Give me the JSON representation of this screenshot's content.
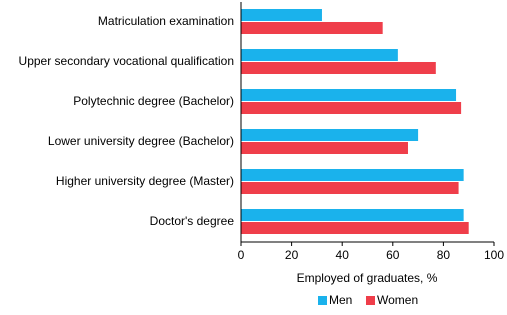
{
  "chart_data": {
    "type": "bar",
    "categories": [
      "Matriculation examination",
      "Upper secondary vocational qualification",
      "Polytechnic degree (Bachelor)",
      "Lower university degree (Bachelor)",
      "Higher university degree (Master)",
      "Doctor's degree"
    ],
    "series": [
      {
        "name": "Men",
        "color": "#1ab2ec",
        "values": [
          32,
          62,
          85,
          70,
          88,
          88
        ]
      },
      {
        "name": "Women",
        "color": "#ef3e4a",
        "values": [
          56,
          77,
          87,
          66,
          86,
          90
        ]
      }
    ],
    "xlabel": "Employed of graduates, %",
    "xlim": [
      0,
      100
    ],
    "xticks": [
      0,
      20,
      40,
      60,
      80,
      100
    ],
    "legend": "bottom"
  }
}
